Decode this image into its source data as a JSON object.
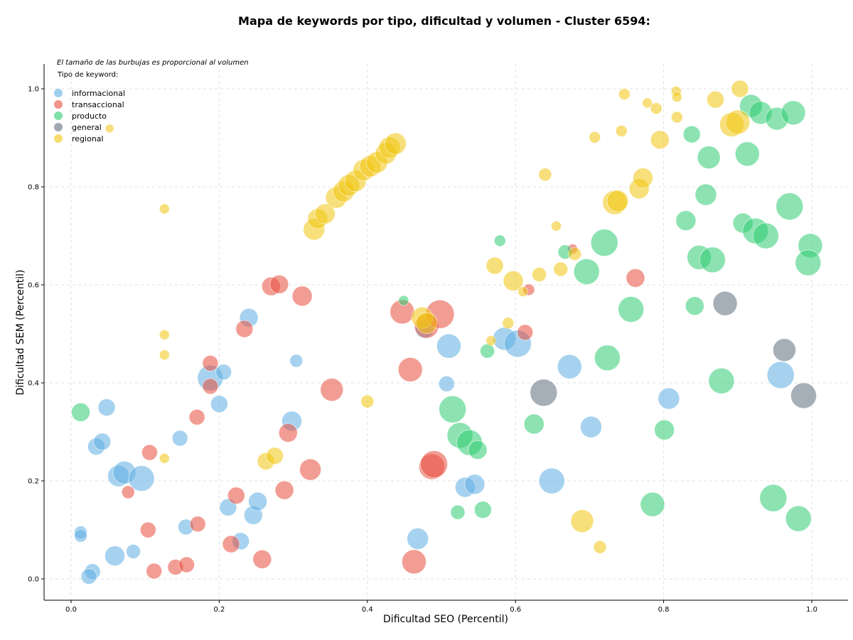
{
  "chart_data": {
    "type": "scatter",
    "title": "Mapa de keywords por tipo, dificultad y volumen - Cluster 6594:",
    "xlabel": "Dificultad SEO (Percentil)",
    "ylabel": "Dificultad SEM (Percentil)",
    "xlim": [
      -0.04,
      1.05
    ],
    "ylim": [
      -0.045,
      1.05
    ],
    "xticks": [
      "0.0",
      "0.2",
      "0.4",
      "0.6",
      "0.8",
      "1.0"
    ],
    "yticks": [
      "0.0",
      "0.2",
      "0.4",
      "0.6",
      "0.8",
      "1.0"
    ],
    "grid": true,
    "legend_position": "top-left",
    "annotation": "El tamaño de las burbujas es proporcional al volumen",
    "legend_title": "Tipo de keyword:",
    "series": [
      {
        "name": "informacional",
        "color": "#5dade2",
        "points": [
          [
            0.013,
            0.095,
            9
          ],
          [
            0.013,
            0.088,
            9
          ],
          [
            0.029,
            0.015,
            11
          ],
          [
            0.024,
            0.005,
            11
          ],
          [
            0.059,
            0.047,
            14
          ],
          [
            0.084,
            0.056,
            10
          ],
          [
            0.034,
            0.27,
            12
          ],
          [
            0.042,
            0.28,
            12
          ],
          [
            0.048,
            0.35,
            12
          ],
          [
            0.064,
            0.21,
            15
          ],
          [
            0.072,
            0.217,
            16
          ],
          [
            0.095,
            0.205,
            18
          ],
          [
            0.147,
            0.287,
            11
          ],
          [
            0.155,
            0.106,
            11
          ],
          [
            0.188,
            0.41,
            18
          ],
          [
            0.206,
            0.422,
            11
          ],
          [
            0.2,
            0.357,
            12
          ],
          [
            0.212,
            0.146,
            12
          ],
          [
            0.229,
            0.077,
            12
          ],
          [
            0.246,
            0.13,
            13
          ],
          [
            0.252,
            0.158,
            13
          ],
          [
            0.24,
            0.533,
            13
          ],
          [
            0.298,
            0.322,
            14
          ],
          [
            0.304,
            0.445,
            9
          ],
          [
            0.468,
            0.082,
            15
          ],
          [
            0.477,
            0.51,
            13
          ],
          [
            0.51,
            0.475,
            17
          ],
          [
            0.507,
            0.398,
            11
          ],
          [
            0.532,
            0.187,
            14
          ],
          [
            0.545,
            0.193,
            14
          ],
          [
            0.585,
            0.49,
            16
          ],
          [
            0.603,
            0.48,
            19
          ],
          [
            0.649,
            0.2,
            18
          ],
          [
            0.673,
            0.433,
            17
          ],
          [
            0.702,
            0.31,
            15
          ],
          [
            0.807,
            0.368,
            15
          ],
          [
            0.958,
            0.416,
            19
          ]
        ]
      },
      {
        "name": "transaccional",
        "color": "#e74c3c",
        "points": [
          [
            0.077,
            0.177,
            9
          ],
          [
            0.104,
            0.1,
            11
          ],
          [
            0.106,
            0.258,
            11
          ],
          [
            0.112,
            0.016,
            11
          ],
          [
            0.141,
            0.024,
            11
          ],
          [
            0.156,
            0.029,
            11
          ],
          [
            0.171,
            0.112,
            11
          ],
          [
            0.17,
            0.33,
            11
          ],
          [
            0.188,
            0.44,
            11
          ],
          [
            0.188,
            0.393,
            11
          ],
          [
            0.216,
            0.071,
            12
          ],
          [
            0.223,
            0.17,
            12
          ],
          [
            0.234,
            0.51,
            12
          ],
          [
            0.258,
            0.04,
            13
          ],
          [
            0.27,
            0.597,
            13
          ],
          [
            0.281,
            0.601,
            13
          ],
          [
            0.288,
            0.181,
            13
          ],
          [
            0.293,
            0.298,
            13
          ],
          [
            0.312,
            0.577,
            14
          ],
          [
            0.323,
            0.223,
            15
          ],
          [
            0.352,
            0.386,
            16
          ],
          [
            0.447,
            0.545,
            17
          ],
          [
            0.458,
            0.427,
            17
          ],
          [
            0.463,
            0.035,
            17
          ],
          [
            0.48,
            0.516,
            17
          ],
          [
            0.498,
            0.54,
            20
          ],
          [
            0.487,
            0.229,
            18
          ],
          [
            0.49,
            0.234,
            19
          ],
          [
            0.613,
            0.503,
            11
          ],
          [
            0.618,
            0.59,
            8
          ],
          [
            0.677,
            0.673,
            7
          ],
          [
            0.762,
            0.614,
            13
          ]
        ]
      },
      {
        "name": "producto",
        "color": "#2ecc71",
        "points": [
          [
            0.013,
            0.34,
            13
          ],
          [
            0.449,
            0.568,
            7
          ],
          [
            0.515,
            0.346,
            19
          ],
          [
            0.525,
            0.293,
            18
          ],
          [
            0.538,
            0.278,
            18
          ],
          [
            0.549,
            0.263,
            13
          ],
          [
            0.522,
            0.136,
            10
          ],
          [
            0.556,
            0.141,
            12
          ],
          [
            0.562,
            0.465,
            10
          ],
          [
            0.579,
            0.69,
            8
          ],
          [
            0.625,
            0.316,
            14
          ],
          [
            0.667,
            0.667,
            10
          ],
          [
            0.696,
            0.627,
            18
          ],
          [
            0.72,
            0.686,
            19
          ],
          [
            0.724,
            0.451,
            18
          ],
          [
            0.756,
            0.55,
            18
          ],
          [
            0.785,
            0.152,
            17
          ],
          [
            0.801,
            0.304,
            14
          ],
          [
            0.842,
            0.557,
            13
          ],
          [
            0.83,
            0.731,
            14
          ],
          [
            0.848,
            0.656,
            17
          ],
          [
            0.838,
            0.907,
            12
          ],
          [
            0.857,
            0.784,
            15
          ],
          [
            0.861,
            0.86,
            16
          ],
          [
            0.866,
            0.651,
            18
          ],
          [
            0.878,
            0.404,
            18
          ],
          [
            0.907,
            0.726,
            14
          ],
          [
            0.913,
            0.867,
            17
          ],
          [
            0.918,
            0.965,
            16
          ],
          [
            0.931,
            0.951,
            16
          ],
          [
            0.924,
            0.71,
            18
          ],
          [
            0.938,
            0.7,
            18
          ],
          [
            0.953,
            0.939,
            16
          ],
          [
            0.948,
            0.165,
            19
          ],
          [
            0.975,
            0.951,
            17
          ],
          [
            0.97,
            0.76,
            19
          ],
          [
            0.998,
            0.68,
            17
          ],
          [
            0.995,
            0.645,
            18
          ],
          [
            0.982,
            0.123,
            18
          ]
        ]
      },
      {
        "name": "general",
        "color": "#5d6d7e",
        "points": [
          [
            0.638,
            0.38,
            19
          ],
          [
            0.883,
            0.562,
            17
          ],
          [
            0.963,
            0.467,
            16
          ],
          [
            0.989,
            0.374,
            18
          ]
        ]
      },
      {
        "name": "regional",
        "color": "#f1c40f",
        "points": [
          [
            0.052,
            0.919,
            6
          ],
          [
            0.126,
            0.755,
            7
          ],
          [
            0.126,
            0.498,
            7
          ],
          [
            0.126,
            0.457,
            7
          ],
          [
            0.126,
            0.246,
            7
          ],
          [
            0.263,
            0.24,
            12
          ],
          [
            0.275,
            0.251,
            12
          ],
          [
            0.328,
            0.713,
            15
          ],
          [
            0.333,
            0.735,
            14
          ],
          [
            0.343,
            0.745,
            14
          ],
          [
            0.358,
            0.778,
            15
          ],
          [
            0.368,
            0.791,
            15
          ],
          [
            0.375,
            0.803,
            15
          ],
          [
            0.384,
            0.812,
            15
          ],
          [
            0.395,
            0.834,
            15
          ],
          [
            0.404,
            0.842,
            15
          ],
          [
            0.413,
            0.85,
            15
          ],
          [
            0.425,
            0.868,
            15
          ],
          [
            0.43,
            0.88,
            15
          ],
          [
            0.438,
            0.888,
            15
          ],
          [
            0.4,
            0.362,
            9
          ],
          [
            0.474,
            0.533,
            15
          ],
          [
            0.48,
            0.522,
            15
          ],
          [
            0.567,
            0.486,
            7
          ],
          [
            0.572,
            0.639,
            12
          ],
          [
            0.59,
            0.522,
            8
          ],
          [
            0.597,
            0.608,
            14
          ],
          [
            0.61,
            0.586,
            7
          ],
          [
            0.64,
            0.825,
            9
          ],
          [
            0.632,
            0.621,
            10
          ],
          [
            0.655,
            0.72,
            7
          ],
          [
            0.661,
            0.632,
            10
          ],
          [
            0.68,
            0.663,
            9
          ],
          [
            0.69,
            0.118,
            16
          ],
          [
            0.707,
            0.901,
            8
          ],
          [
            0.714,
            0.065,
            9
          ],
          [
            0.734,
            0.768,
            17
          ],
          [
            0.738,
            0.771,
            15
          ],
          [
            0.743,
            0.914,
            8
          ],
          [
            0.747,
            0.989,
            8
          ],
          [
            0.767,
            0.796,
            14
          ],
          [
            0.772,
            0.818,
            14
          ],
          [
            0.778,
            0.971,
            7
          ],
          [
            0.79,
            0.96,
            8
          ],
          [
            0.795,
            0.896,
            13
          ],
          [
            0.817,
            0.995,
            7
          ],
          [
            0.818,
            0.942,
            8
          ],
          [
            0.818,
            0.983,
            7
          ],
          [
            0.87,
            0.978,
            12
          ],
          [
            0.892,
            0.927,
            17
          ],
          [
            0.9,
            0.932,
            17
          ],
          [
            0.903,
            1.0,
            12
          ]
        ]
      }
    ]
  }
}
